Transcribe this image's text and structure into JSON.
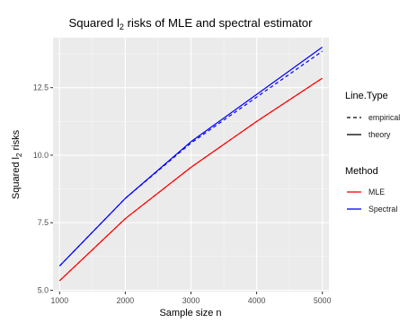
{
  "chart_data": {
    "type": "line",
    "title": "Squared l₂ risks of MLE and spectral estimator",
    "title_parts": {
      "before": "Squared l",
      "subscript": "2",
      "after": " risks of MLE and spectral estimator"
    },
    "xlabel": "Sample size n",
    "ylabel": "Squared l₂ risks",
    "ylabel_parts": {
      "before": "Squared l",
      "subscript": "2",
      "after": " risks"
    },
    "xlim": [
      900,
      5100
    ],
    "ylim": [
      4.95,
      14.35
    ],
    "x_ticks": [
      1000,
      2000,
      3000,
      4000,
      5000
    ],
    "x_tick_labels": [
      "1000",
      "2000",
      "3000",
      "4000",
      "5000"
    ],
    "y_ticks": [
      5.0,
      7.5,
      10.0,
      12.5
    ],
    "y_tick_labels": [
      "5.0",
      "7.5",
      "10.0",
      "12.5"
    ],
    "grid": true,
    "background": "#ebebeb",
    "x": [
      1000,
      2000,
      3000,
      4000,
      5000
    ],
    "series": [
      {
        "name": "MLE",
        "method": "MLE",
        "line_type": "theory",
        "color": "#ff0000",
        "dash": false,
        "values": [
          5.35,
          7.65,
          9.55,
          11.25,
          12.85
        ]
      },
      {
        "name": "MLE",
        "method": "MLE",
        "line_type": "empirical",
        "color": "#ff0000",
        "dash": true,
        "values": [
          5.35,
          7.65,
          9.55,
          11.25,
          12.85
        ]
      },
      {
        "name": "Spectral",
        "method": "Spectral",
        "line_type": "theory",
        "color": "#0000ff",
        "dash": false,
        "values": [
          5.9,
          8.4,
          10.5,
          12.25,
          14.0
        ]
      },
      {
        "name": "Spectral",
        "method": "Spectral",
        "line_type": "empirical",
        "color": "#0000ff",
        "dash": true,
        "values": [
          5.9,
          8.4,
          10.45,
          12.15,
          13.85
        ]
      }
    ],
    "legend": {
      "placement": "right",
      "linetype_title": "Line.Type",
      "linetype_items": [
        {
          "label": "empirical",
          "dash": true
        },
        {
          "label": "theory",
          "dash": false
        }
      ],
      "method_title": "Method",
      "method_items": [
        {
          "label": "MLE",
          "color": "#ff0000"
        },
        {
          "label": "Spectral",
          "color": "#0000ff"
        }
      ]
    }
  }
}
